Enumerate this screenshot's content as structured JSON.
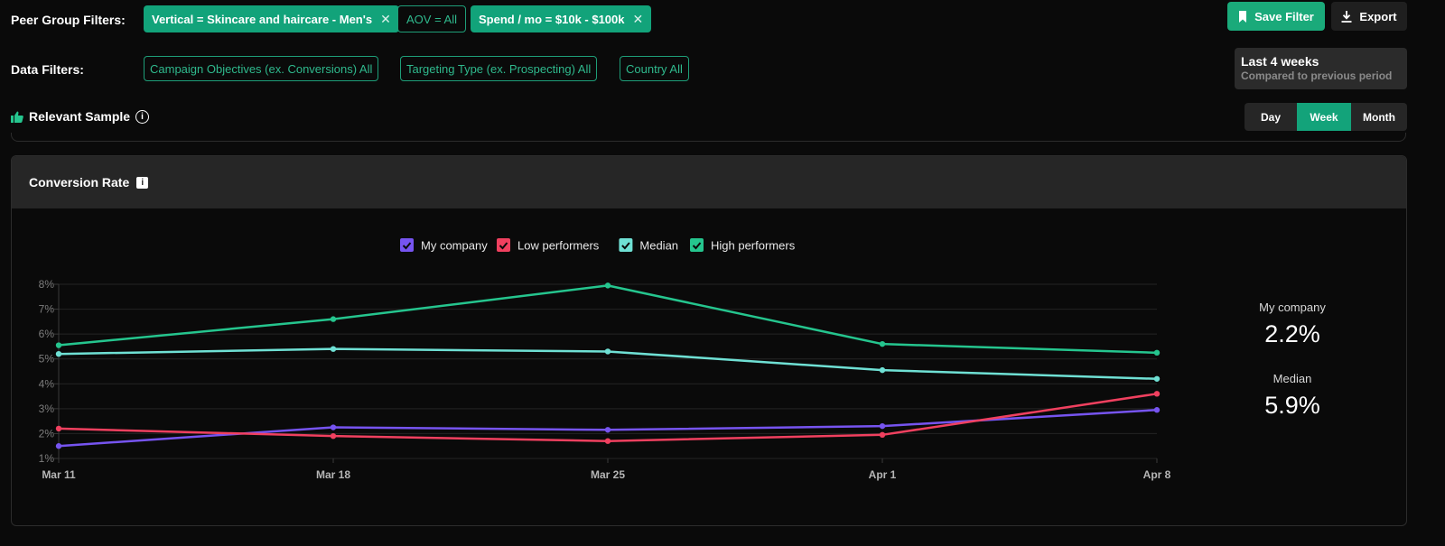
{
  "filters": {
    "peer_label": "Peer Group Filters:",
    "peer_chips": [
      {
        "label": "Vertical = Skincare and haircare - Men's",
        "removable": true,
        "style": "solid"
      },
      {
        "label": "AOV = All",
        "removable": false,
        "style": "outline"
      },
      {
        "label": "Spend / mo = $10k - $100k",
        "removable": true,
        "style": "solid"
      }
    ],
    "data_label": "Data Filters:",
    "data_chips": [
      "Campaign Objectives (ex. Conversions) All",
      "Targeting Type (ex. Prospecting) All",
      "Country All"
    ],
    "remove_glyph": "✕"
  },
  "actions": {
    "save_label": "Save Filter",
    "export_label": "Export"
  },
  "period": {
    "title": "Last 4 weeks",
    "subtitle": "Compared to previous period"
  },
  "sample": {
    "label": "Relevant Sample",
    "info_glyph": "i"
  },
  "granularity": {
    "options": [
      "Day",
      "Week",
      "Month"
    ],
    "selected": "Week"
  },
  "card": {
    "title": "Conversion Rate",
    "info_glyph": "i"
  },
  "summary": [
    {
      "label": "My company",
      "value": "2.2%"
    },
    {
      "label": "Median",
      "value": "5.9%"
    }
  ],
  "colors": {
    "accent": "#13a37a",
    "my_company": "#7654f0",
    "low_performers": "#f0405f",
    "median": "#6fe0d4",
    "high_performers": "#25c58e"
  },
  "chart_data": {
    "type": "line",
    "title": "Conversion Rate",
    "categories": [
      "Mar 11",
      "Mar 18",
      "Mar 25",
      "Apr 1",
      "Apr 8"
    ],
    "y_ticks": [
      "1%",
      "2%",
      "3%",
      "4%",
      "5%",
      "6%",
      "7%",
      "8%"
    ],
    "ylim": [
      1,
      8
    ],
    "y_unit": "%",
    "grid": true,
    "legend_position": "top",
    "series": [
      {
        "name": "My company",
        "color": "#7654f0",
        "values": [
          1.5,
          2.25,
          2.15,
          2.3,
          2.95
        ]
      },
      {
        "name": "Low performers",
        "color": "#f0405f",
        "values": [
          2.2,
          1.9,
          1.7,
          1.95,
          3.6
        ]
      },
      {
        "name": "Median",
        "color": "#6fe0d4",
        "values": [
          5.2,
          5.4,
          5.3,
          4.55,
          4.2
        ]
      },
      {
        "name": "High performers",
        "color": "#25c58e",
        "values": [
          5.55,
          6.6,
          7.95,
          5.6,
          5.25
        ]
      }
    ]
  }
}
